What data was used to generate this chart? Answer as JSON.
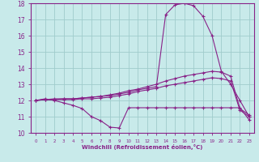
{
  "x": [
    0,
    1,
    2,
    3,
    4,
    5,
    6,
    7,
    8,
    9,
    10,
    11,
    12,
    13,
    14,
    15,
    16,
    17,
    18,
    19,
    20,
    21,
    22,
    23
  ],
  "line_spike": [
    12.0,
    12.1,
    12.0,
    11.85,
    11.7,
    11.5,
    11.0,
    10.75,
    10.35,
    10.3,
    11.55,
    11.55,
    11.55,
    11.55,
    11.55,
    11.55,
    11.55,
    11.55,
    11.55,
    11.55,
    11.55,
    11.55,
    11.55,
    10.8
  ],
  "line_top": [
    12.0,
    12.05,
    12.05,
    12.1,
    12.1,
    12.15,
    12.2,
    12.25,
    12.3,
    12.4,
    12.5,
    12.65,
    12.75,
    12.85,
    17.3,
    17.9,
    18.0,
    17.85,
    17.2,
    16.0,
    13.8,
    13.0,
    12.0,
    11.0
  ],
  "line_mid": [
    12.0,
    12.05,
    12.1,
    12.1,
    12.1,
    12.15,
    12.2,
    12.25,
    12.35,
    12.45,
    12.6,
    12.7,
    12.85,
    13.0,
    13.2,
    13.35,
    13.5,
    13.6,
    13.7,
    13.8,
    13.75,
    13.5,
    11.5,
    11.1
  ],
  "line_bot": [
    12.0,
    12.05,
    12.05,
    12.05,
    12.05,
    12.1,
    12.1,
    12.15,
    12.2,
    12.3,
    12.4,
    12.55,
    12.65,
    12.75,
    12.9,
    13.0,
    13.1,
    13.2,
    13.3,
    13.4,
    13.35,
    13.2,
    11.4,
    11.0
  ],
  "line_color": "#882288",
  "bg_color": "#c8eaea",
  "grid_color": "#a0cccc",
  "xlabel": "Windchill (Refroidissement éolien,°C)",
  "ylim": [
    10,
    18
  ],
  "xlim": [
    -0.5,
    23.5
  ],
  "yticks": [
    10,
    11,
    12,
    13,
    14,
    15,
    16,
    17,
    18
  ],
  "xticks": [
    0,
    1,
    2,
    3,
    4,
    5,
    6,
    7,
    8,
    9,
    10,
    11,
    12,
    13,
    14,
    15,
    16,
    17,
    18,
    19,
    20,
    21,
    22,
    23
  ]
}
